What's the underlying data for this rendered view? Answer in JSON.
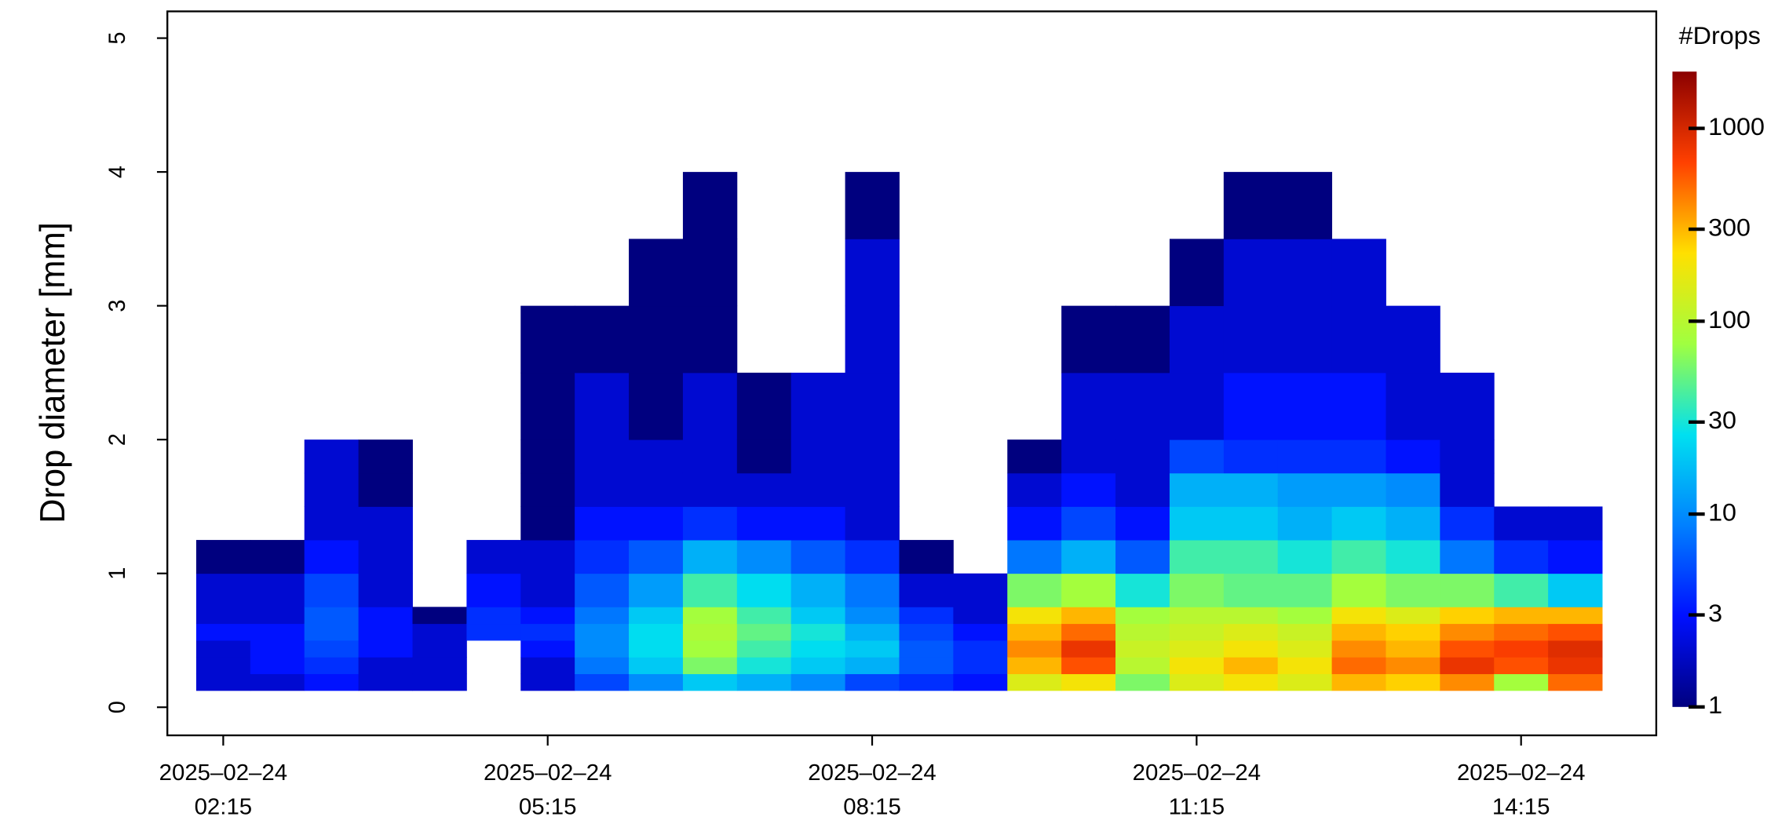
{
  "chart_data": {
    "type": "heatmap",
    "ylabel": "Drop diameter [mm]",
    "colorbar_title": "#Drops",
    "x": [
      "2025-02-24 02:00",
      "2025-02-24 02:30",
      "2025-02-24 03:00",
      "2025-02-24 03:30",
      "2025-02-24 04:00",
      "2025-02-24 04:30",
      "2025-02-24 05:00",
      "2025-02-24 05:30",
      "2025-02-24 06:00",
      "2025-02-24 06:30",
      "2025-02-24 07:00",
      "2025-02-24 07:30",
      "2025-02-24 08:00",
      "2025-02-24 08:30",
      "2025-02-24 09:00",
      "2025-02-24 09:30",
      "2025-02-24 10:00",
      "2025-02-24 10:30",
      "2025-02-24 11:00",
      "2025-02-24 11:30",
      "2025-02-24 12:00",
      "2025-02-24 12:30",
      "2025-02-24 13:00",
      "2025-02-24 13:30",
      "2025-02-24 14:00",
      "2025-02-24 14:30",
      "2025-02-24 15:00"
    ],
    "y": [
      0.125,
      0.25,
      0.375,
      0.5,
      0.625,
      0.75,
      1.0,
      1.25,
      1.5,
      1.75,
      2.0,
      2.5,
      3.0,
      3.5,
      4.0
    ],
    "z": [
      [
        2,
        2,
        2,
        3,
        2,
        2,
        1,
        null,
        null,
        null,
        null,
        null,
        null,
        null
      ],
      [
        2,
        3,
        3,
        3,
        2,
        2,
        1,
        null,
        null,
        null,
        null,
        null,
        null,
        null
      ],
      [
        3,
        4,
        5,
        6,
        6,
        5,
        3,
        2,
        2,
        2,
        null,
        null,
        null,
        null
      ],
      [
        2,
        2,
        3,
        3,
        3,
        2,
        2,
        2,
        1,
        1,
        null,
        null,
        null,
        null
      ],
      [
        2,
        2,
        2,
        2,
        1,
        null,
        null,
        null,
        null,
        null,
        null,
        null,
        null,
        null
      ],
      [
        null,
        null,
        null,
        4,
        4,
        3,
        2,
        null,
        null,
        null,
        null,
        null,
        null,
        null
      ],
      [
        2,
        2,
        3,
        4,
        3,
        2,
        2,
        1,
        1,
        1,
        1,
        1,
        null,
        null
      ],
      [
        5,
        8,
        10,
        10,
        8,
        6,
        4,
        3,
        2,
        2,
        2,
        1,
        null,
        null
      ],
      [
        10,
        20,
        25,
        25,
        20,
        12,
        6,
        3,
        2,
        2,
        1,
        1,
        1,
        null
      ],
      [
        20,
        60,
        80,
        90,
        80,
        40,
        15,
        4,
        2,
        2,
        2,
        1,
        1,
        1
      ],
      [
        15,
        30,
        40,
        50,
        40,
        25,
        10,
        3,
        2,
        1,
        1,
        null,
        null,
        null
      ],
      [
        10,
        20,
        25,
        30,
        20,
        15,
        6,
        3,
        2,
        2,
        2,
        null,
        null,
        null
      ],
      [
        5,
        15,
        20,
        15,
        10,
        8,
        4,
        2,
        2,
        2,
        2,
        2,
        2,
        1
      ],
      [
        4,
        6,
        6,
        5,
        4,
        2,
        1,
        null,
        null,
        null,
        null,
        null,
        null,
        null
      ],
      [
        3,
        4,
        4,
        3,
        2,
        2,
        null,
        null,
        null,
        null,
        null,
        null,
        null,
        null
      ],
      [
        150,
        300,
        400,
        300,
        200,
        60,
        8,
        3,
        2,
        1,
        null,
        null,
        null,
        null
      ],
      [
        200,
        600,
        800,
        500,
        300,
        80,
        15,
        5,
        3,
        2,
        2,
        1,
        null,
        null
      ],
      [
        60,
        100,
        120,
        100,
        80,
        30,
        6,
        3,
        2,
        2,
        2,
        1,
        null,
        null
      ],
      [
        150,
        200,
        150,
        120,
        100,
        60,
        40,
        20,
        15,
        5,
        2,
        2,
        1,
        null
      ],
      [
        200,
        300,
        200,
        150,
        100,
        50,
        40,
        20,
        15,
        4,
        3,
        2,
        2,
        1
      ],
      [
        150,
        200,
        150,
        120,
        80,
        50,
        30,
        15,
        12,
        4,
        3,
        2,
        2,
        1
      ],
      [
        300,
        500,
        400,
        300,
        200,
        80,
        40,
        20,
        12,
        4,
        3,
        2,
        2,
        null
      ],
      [
        250,
        400,
        300,
        250,
        150,
        60,
        30,
        15,
        10,
        3,
        2,
        2,
        null,
        null
      ],
      [
        400,
        800,
        600,
        400,
        250,
        60,
        8,
        4,
        2,
        2,
        2,
        null,
        null,
        null
      ],
      [
        80,
        600,
        700,
        500,
        300,
        40,
        4,
        2,
        null,
        null,
        null,
        null,
        null,
        null
      ],
      [
        500,
        800,
        900,
        600,
        300,
        20,
        3,
        2,
        null,
        null,
        null,
        null,
        null,
        null
      ]
    ],
    "xlim": [
      "2025-02-24 01:44",
      "2025-02-24 15:30"
    ],
    "xticks": [
      {
        "value": "2025-02-24 02:15",
        "label": [
          "2025–02–24",
          "02:15"
        ]
      },
      {
        "value": "2025-02-24 05:15",
        "label": [
          "2025–02–24",
          "05:15"
        ]
      },
      {
        "value": "2025-02-24 08:15",
        "label": [
          "2025–02–24",
          "08:15"
        ]
      },
      {
        "value": "2025-02-24 11:15",
        "label": [
          "2025–02–24",
          "11:15"
        ]
      },
      {
        "value": "2025-02-24 14:15",
        "label": [
          "2025–02–24",
          "14:15"
        ]
      }
    ],
    "ylim": [
      -0.21,
      5.2
    ],
    "yticks": [
      0,
      1,
      2,
      3,
      4,
      5
    ],
    "zlim": [
      1,
      1970
    ],
    "zticks": [
      1,
      3,
      10,
      30,
      100,
      300,
      1000
    ],
    "zscale": "log",
    "colormap": [
      "#00007f",
      "#0010ff",
      "#0080ff",
      "#00e0f0",
      "#a0ff40",
      "#ffe000",
      "#ff4000",
      "#8b0000"
    ]
  }
}
